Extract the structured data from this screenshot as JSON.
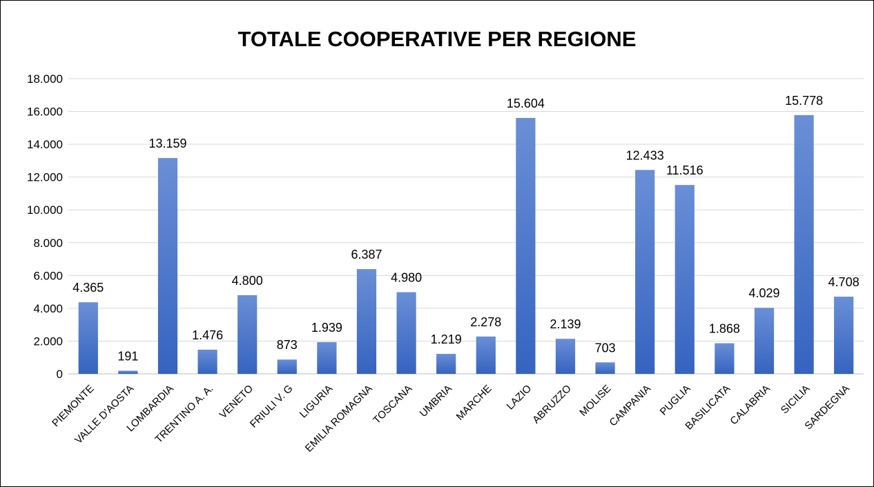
{
  "chart_data": {
    "type": "bar",
    "title": "TOTALE COOPERATIVE PER REGIONE",
    "xlabel": "",
    "ylabel": "",
    "ylim": [
      0,
      18000
    ],
    "yticks": [
      "0",
      "2.000",
      "4.000",
      "6.000",
      "8.000",
      "10.000",
      "12.000",
      "14.000",
      "16.000",
      "18.000"
    ],
    "categories": [
      "PIEMONTE",
      "VALLE D'AOSTA",
      "LOMBARDIA",
      "TRENTINO A. A.",
      "VENETO",
      "FRIULI V. G",
      "LIGURIA",
      "EMILIA ROMAGNA",
      "TOSCANA",
      "UMBRIA",
      "MARCHE",
      "LAZIO",
      "ABRUZZO",
      "MOLISE",
      "CAMPANIA",
      "PUGLIA",
      "BASILICATA",
      "CALABRIA",
      "SICILIA",
      "SARDEGNA"
    ],
    "values": [
      4365,
      191,
      13159,
      1476,
      4800,
      873,
      1939,
      6387,
      4980,
      1219,
      2278,
      15604,
      2139,
      703,
      12433,
      11516,
      1868,
      4029,
      15778,
      4708
    ],
    "data_labels": [
      "4.365",
      "191",
      "13.159",
      "1.476",
      "4.800",
      "873",
      "1.939",
      "6.387",
      "4.980",
      "1.219",
      "2.278",
      "15.604",
      "2.139",
      "703",
      "12.433",
      "11.516",
      "1.868",
      "4.029",
      "15.778",
      "4.708"
    ],
    "grid": true,
    "legend": "none",
    "colors": {
      "bar_top": "#6a8fd6",
      "bar_bottom": "#3563c0",
      "grid": "#d9d9d9",
      "axis": "#bfbfbf"
    }
  }
}
